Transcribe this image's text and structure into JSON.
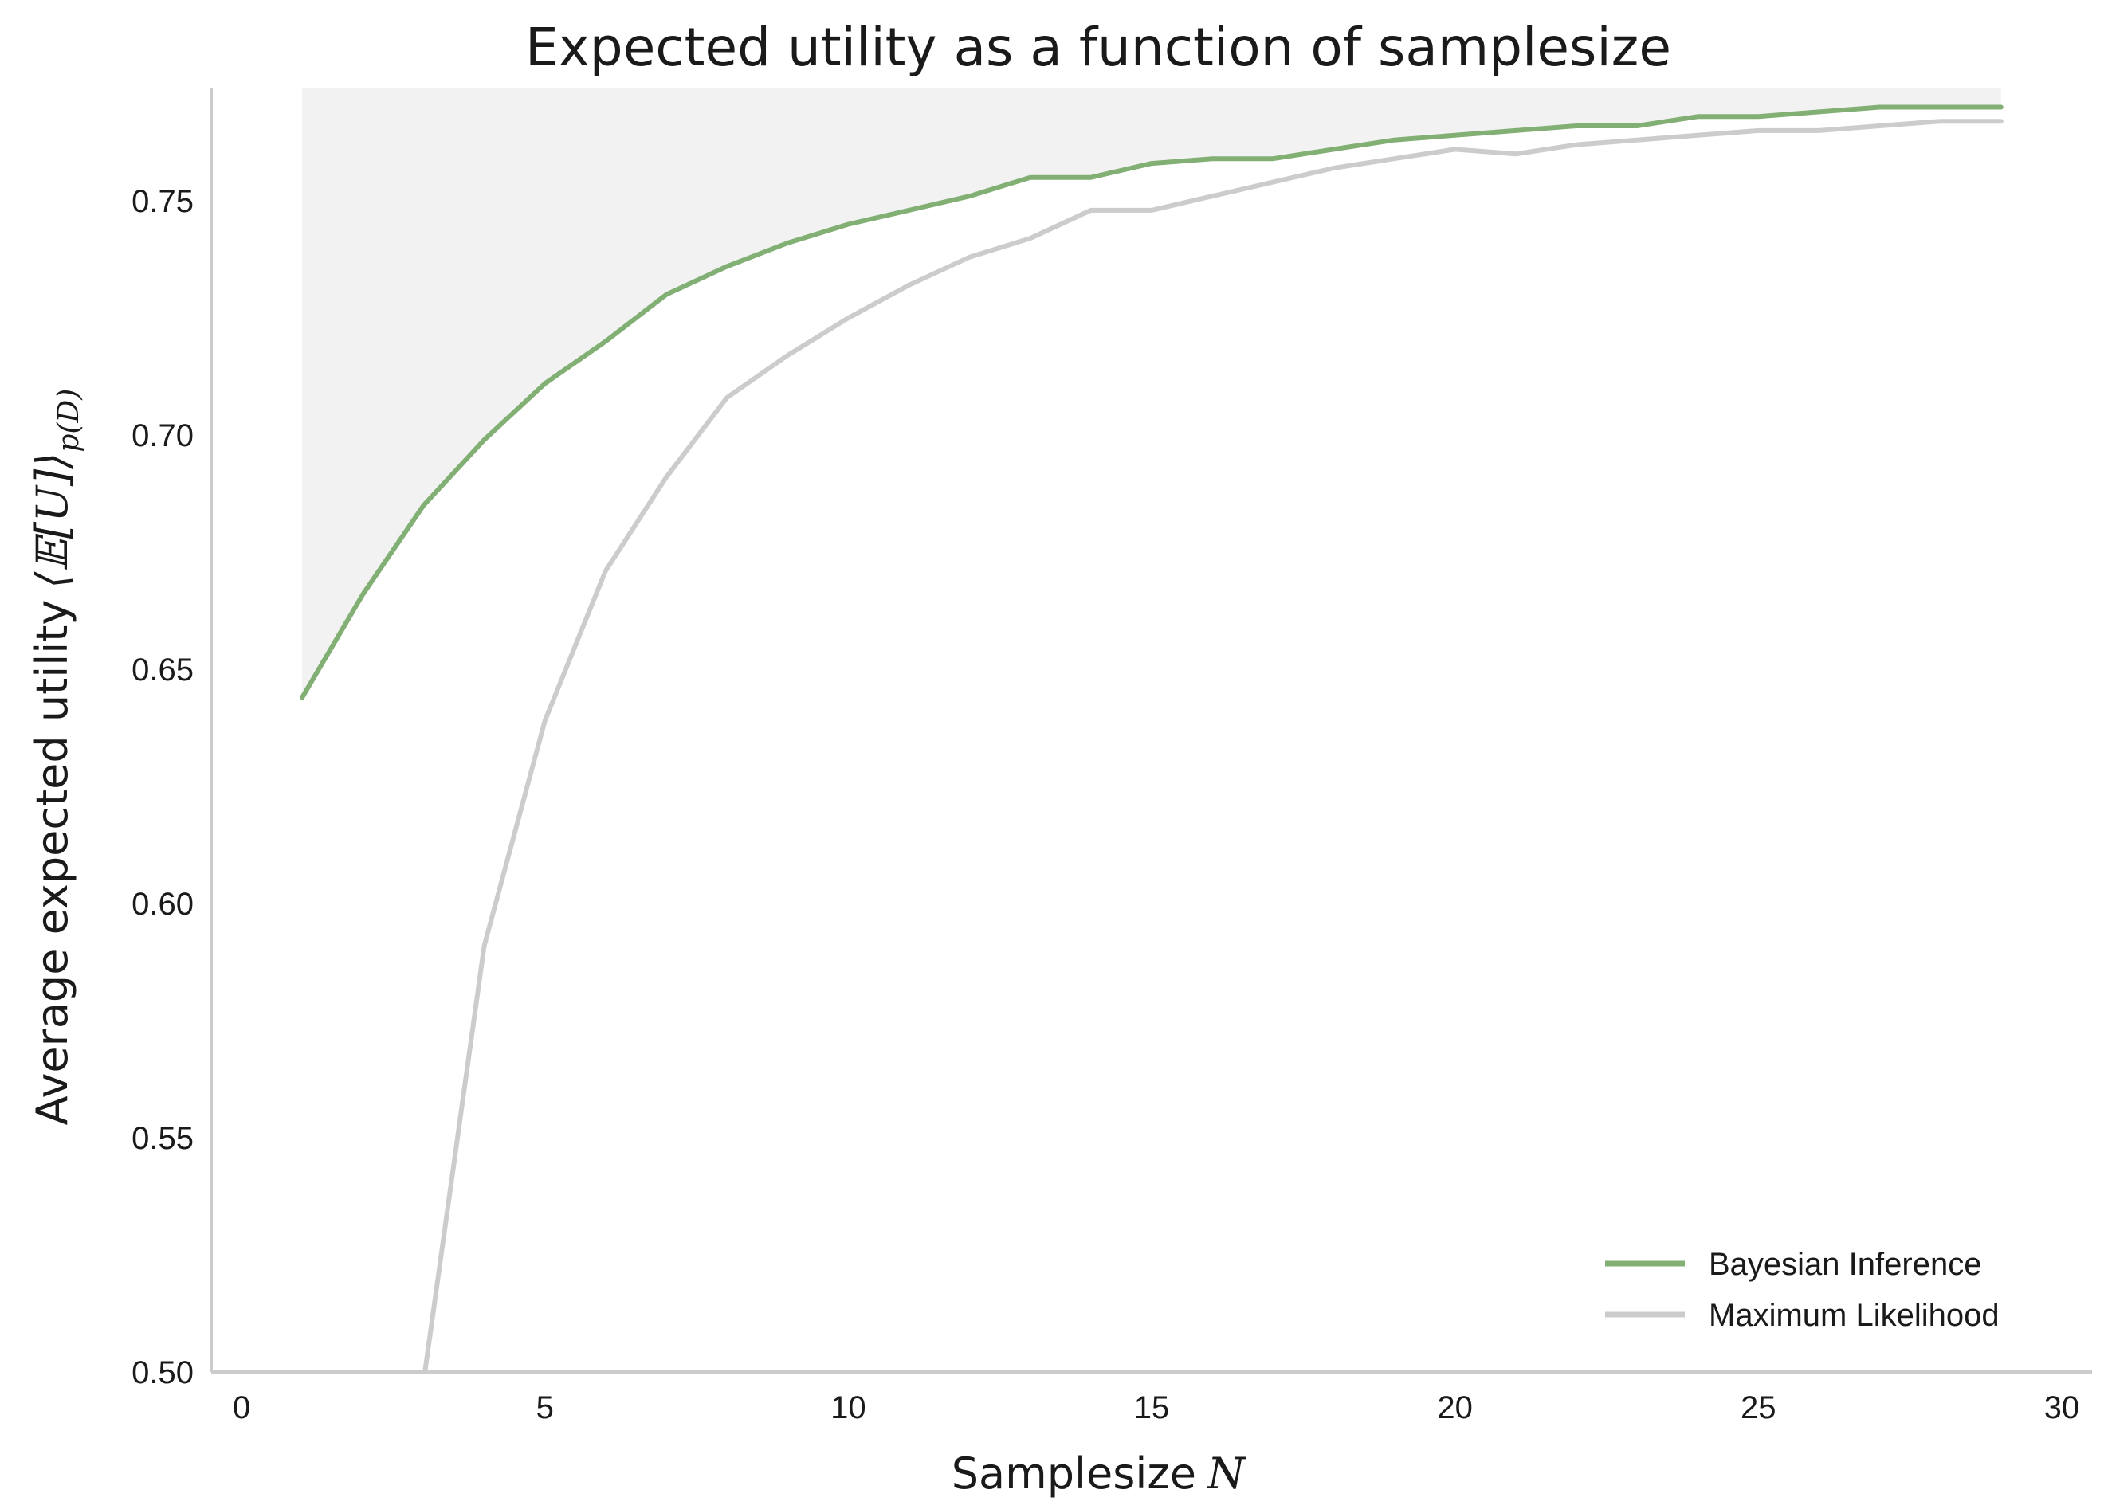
{
  "chart_data": {
    "type": "line",
    "title": "Expected utility as a function of samplesize",
    "xlabel": "Samplesize",
    "xlabel_var": "N",
    "ylabel": "Average expected utility",
    "ylabel_math": "⟨𝔼[U]⟩",
    "ylabel_sub": "p(D)",
    "xlim": [
      -0.5,
      30.5
    ],
    "ylim": [
      0.5,
      0.774
    ],
    "xticks": [
      0,
      5,
      10,
      15,
      20,
      25,
      30
    ],
    "xtick_labels": [
      "0",
      "5",
      "10",
      "15",
      "20",
      "25",
      "30"
    ],
    "yticks": [
      0.5,
      0.55,
      0.6,
      0.65,
      0.7,
      0.75
    ],
    "ytick_labels": [
      "0.50",
      "0.55",
      "0.60",
      "0.65",
      "0.70",
      "0.75"
    ],
    "grid": false,
    "legend_position": "lower-right",
    "fill_between": {
      "series": "Bayesian Inference",
      "upper_bound": "top-of-axes",
      "color": "#f2f2f2"
    },
    "x": [
      1,
      2,
      3,
      4,
      5,
      6,
      7,
      8,
      9,
      10,
      11,
      12,
      13,
      14,
      15,
      16,
      17,
      18,
      19,
      20,
      21,
      22,
      23,
      24,
      25,
      26,
      27,
      28,
      29
    ],
    "series": [
      {
        "name": "Bayesian Inference",
        "color": "#82b074",
        "values": [
          0.644,
          0.666,
          0.685,
          0.699,
          0.711,
          0.72,
          0.73,
          0.736,
          0.741,
          0.745,
          0.748,
          0.751,
          0.755,
          0.755,
          0.758,
          0.759,
          0.759,
          0.761,
          0.763,
          0.764,
          0.765,
          0.766,
          0.766,
          0.768,
          0.768,
          0.769,
          0.77,
          0.77,
          0.77
        ]
      },
      {
        "name": "Maximum Likelihood",
        "color": "#cccccc",
        "values": [
          null,
          null,
          0.498,
          0.591,
          0.639,
          0.671,
          0.691,
          0.708,
          0.717,
          0.725,
          0.732,
          0.738,
          0.742,
          0.748,
          0.748,
          0.751,
          0.754,
          0.757,
          0.759,
          0.761,
          0.76,
          0.762,
          0.763,
          0.764,
          0.765,
          0.765,
          0.766,
          0.767,
          0.767
        ]
      }
    ]
  }
}
